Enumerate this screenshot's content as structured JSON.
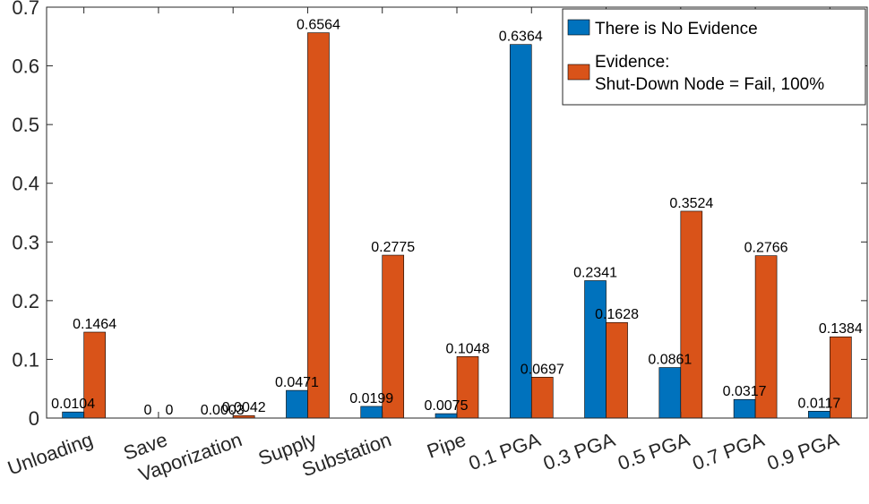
{
  "chart_data": {
    "type": "bar",
    "title": "",
    "xlabel": "",
    "ylabel": "",
    "categories": [
      "Unloading",
      "Save",
      "Vaporization",
      "Supply",
      "Substation",
      "Pipe",
      "0.1 PGA",
      "0.3 PGA",
      "0.5 PGA",
      "0.7 PGA",
      "0.9 PGA"
    ],
    "ylim": [
      0,
      0.7
    ],
    "yticks": [
      0,
      0.1,
      0.2,
      0.3,
      0.4,
      0.5,
      0.6,
      0.7
    ],
    "ytick_labels": [
      "0",
      "0.1",
      "0.2",
      "0.3",
      "0.4",
      "0.5",
      "0.6",
      "0.7"
    ],
    "series": [
      {
        "name": "There is No Evidence",
        "color": "#0072BD",
        "values": [
          0.0104,
          0,
          0.0003,
          0.0471,
          0.0199,
          0.0075,
          0.6364,
          0.2341,
          0.0861,
          0.0317,
          0.0117
        ],
        "labels": [
          "0.0104",
          "0",
          "0.0003",
          "0.0471",
          "0.0199",
          "0.0075",
          "0.6364",
          "0.2341",
          "0.0861",
          "0.0317",
          "0.0117"
        ]
      },
      {
        "name": "Evidence:\nShut-Down Node = Fail, 100%",
        "legend_lines": [
          "Evidence:",
          "Shut-Down Node = Fail, 100%"
        ],
        "color": "#D95319",
        "values": [
          0.1464,
          0,
          0.0042,
          0.6564,
          0.2775,
          0.1048,
          0.0697,
          0.1628,
          0.3524,
          0.2766,
          0.1384
        ],
        "labels": [
          "0.1464",
          "0",
          "0.0042",
          "0.6564",
          "0.2775",
          "0.1048",
          "0.0697",
          "0.1628",
          "0.3524",
          "0.2766",
          "0.1384"
        ]
      }
    ],
    "legend_position": "top-right",
    "grid": false
  }
}
